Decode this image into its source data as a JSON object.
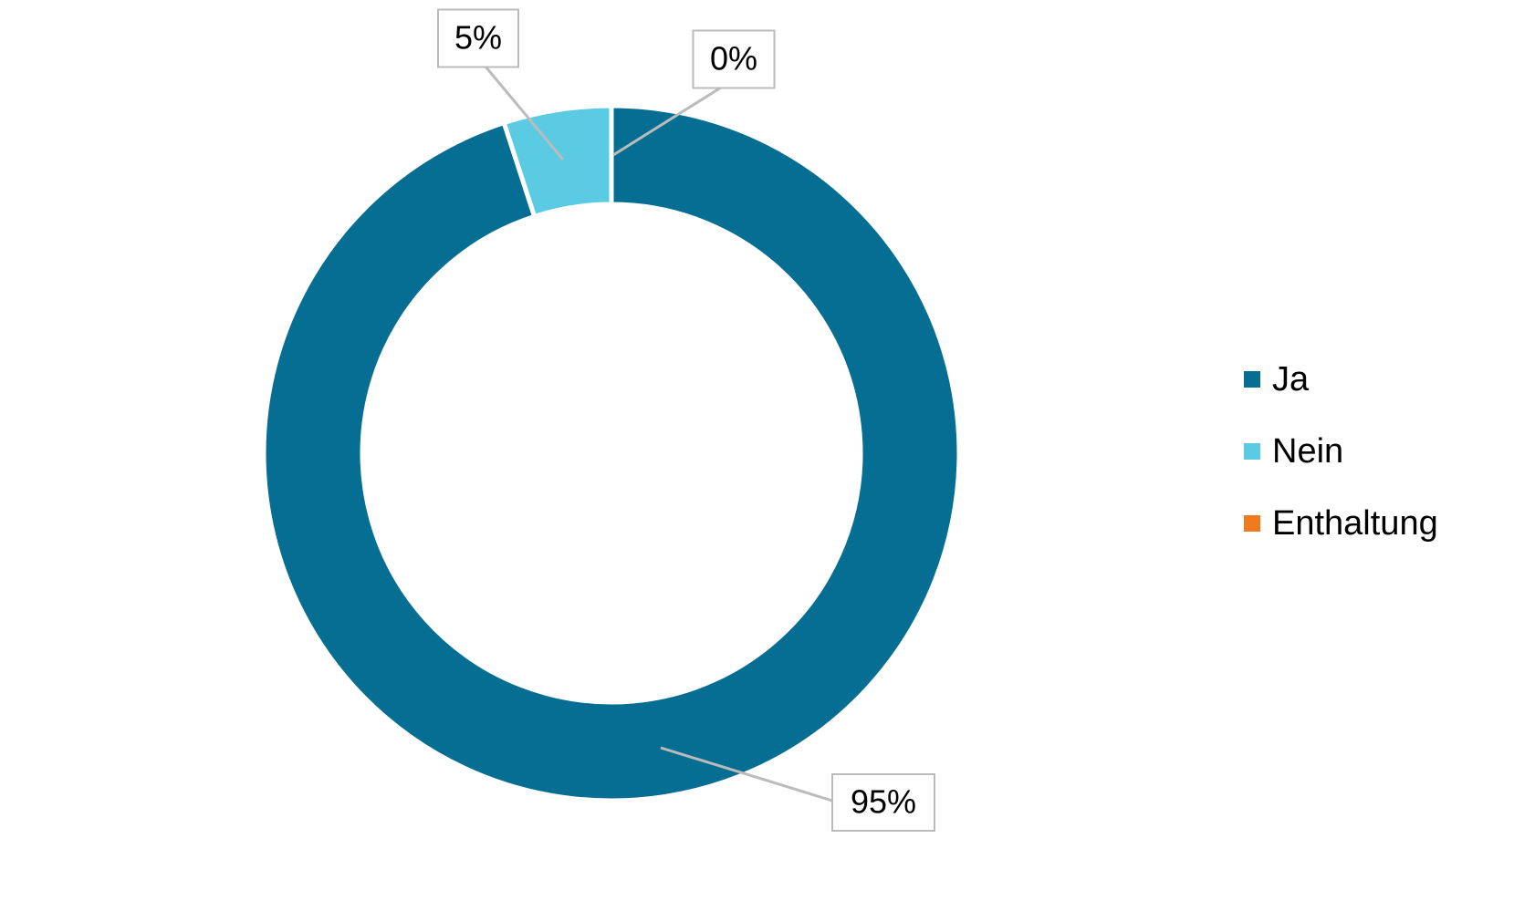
{
  "chart_data": {
    "type": "donut",
    "categories": [
      "Ja",
      "Nein",
      "Enthaltung"
    ],
    "values": [
      95,
      5,
      0
    ],
    "value_labels": [
      "95%",
      "5%",
      "0%"
    ],
    "colors": [
      "#066e92",
      "#5bcbe3",
      "#f07b1c"
    ],
    "legend": "right"
  }
}
